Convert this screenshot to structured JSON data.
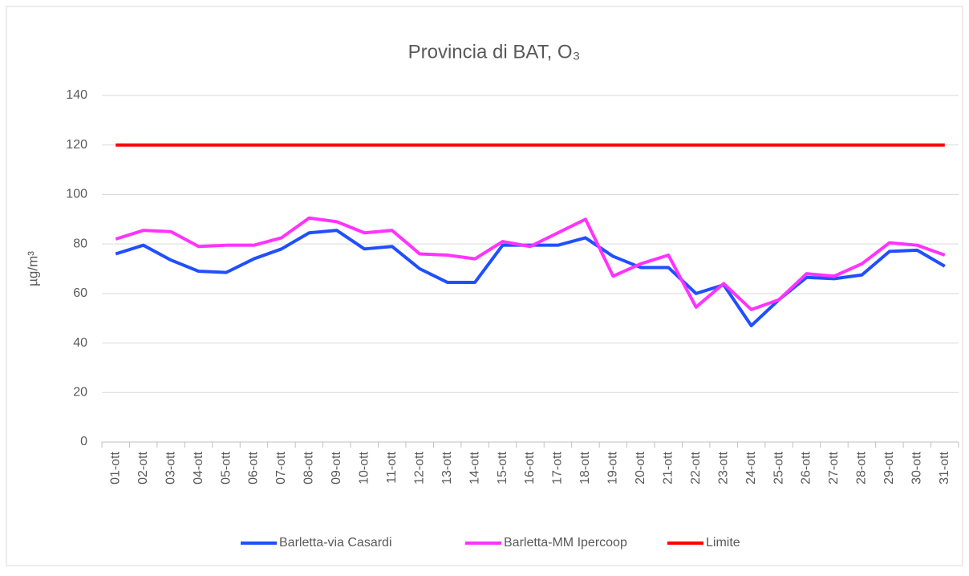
{
  "chart_data": {
    "type": "line",
    "title": "Provincia di BAT, O₃",
    "ylabel": "µg/m³",
    "categories": [
      "01-ott",
      "02-ott",
      "03-ott",
      "04-ott",
      "05-ott",
      "06-ott",
      "07-ott",
      "08-ott",
      "09-ott",
      "10-ott",
      "11-ott",
      "12-ott",
      "13-ott",
      "14-ott",
      "15-ott",
      "16-ott",
      "17-ott",
      "18-ott",
      "19-ott",
      "20-ott",
      "21-ott",
      "22-ott",
      "23-ott",
      "24-ott",
      "25-ott",
      "26-ott",
      "27-ott",
      "28-ott",
      "29-ott",
      "30-ott",
      "31-ott"
    ],
    "series": [
      {
        "name": "Barletta-via Casardi",
        "color": "#1f4fff",
        "values": [
          76,
          79.5,
          73.5,
          69,
          68.5,
          74,
          78,
          84.5,
          85.5,
          78,
          79,
          70,
          64.5,
          64.5,
          79.5,
          79.5,
          79.5,
          82.5,
          75,
          70.5,
          70.5,
          60,
          63.5,
          47,
          57.5,
          66.5,
          66,
          67.5,
          77,
          77.5,
          71
        ]
      },
      {
        "name": "Barletta-MM Ipercoop",
        "color": "#ff33ff",
        "values": [
          82,
          85.5,
          85,
          79,
          79.5,
          79.5,
          82.5,
          90.5,
          89,
          84.5,
          85.5,
          76,
          75.5,
          74,
          81,
          79,
          84.5,
          90,
          67,
          72,
          75.5,
          54.5,
          64,
          53.5,
          57.5,
          68,
          67,
          72,
          80.5,
          79.5,
          75.5
        ]
      },
      {
        "name": "Limite",
        "color": "#ff0000",
        "values": [
          120,
          120,
          120,
          120,
          120,
          120,
          120,
          120,
          120,
          120,
          120,
          120,
          120,
          120,
          120,
          120,
          120,
          120,
          120,
          120,
          120,
          120,
          120,
          120,
          120,
          120,
          120,
          120,
          120,
          120,
          120
        ]
      }
    ],
    "ylim": [
      0,
      140
    ],
    "yticks": [
      0,
      20,
      40,
      60,
      80,
      100,
      120,
      140
    ],
    "grid": true,
    "legend": "bottom"
  }
}
